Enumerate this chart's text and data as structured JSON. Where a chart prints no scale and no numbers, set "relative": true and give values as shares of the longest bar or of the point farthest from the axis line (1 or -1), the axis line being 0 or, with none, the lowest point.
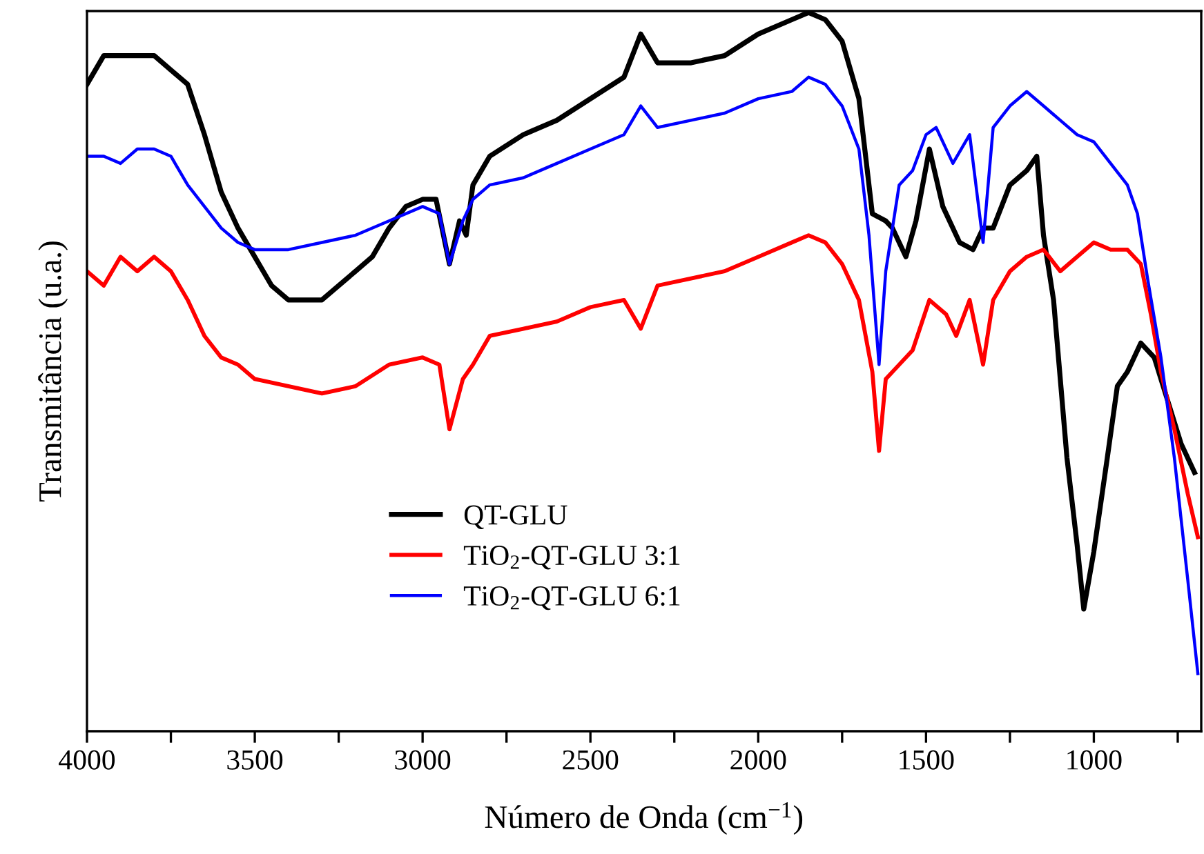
{
  "chart_data": {
    "type": "line",
    "relative": true,
    "xlabel": "Número de Onda (cm$^{−1}$)",
    "ylabel": "Transmitância (u.a.)",
    "xlim": [
      4000,
      680
    ],
    "xticks": [
      4000,
      {
        "value": 3750,
        "label": null
      },
      3500,
      {
        "value": 3250,
        "label": null
      },
      3000,
      {
        "value": 2750,
        "label": null
      },
      2500,
      {
        "value": 2250,
        "label": null
      },
      2000,
      {
        "value": 1750,
        "label": null
      },
      1500,
      {
        "value": 1250,
        "label": null
      },
      1000,
      {
        "value": 750,
        "label": null
      }
    ],
    "tick_labels": "x",
    "grid": false,
    "legend": "bottom left",
    "marker": "none",
    "line_style": "solid",
    "series": [
      {
        "name": "QT-GLU",
        "color": "#000000",
        "x": [
          4000,
          3950,
          3900,
          3850,
          3800,
          3750,
          3700,
          3650,
          3600,
          3550,
          3500,
          3450,
          3400,
          3350,
          3300,
          3250,
          3200,
          3150,
          3100,
          3050,
          3000,
          2960,
          2920,
          2890,
          2870,
          2850,
          2800,
          2700,
          2600,
          2500,
          2400,
          2350,
          2300,
          2200,
          2100,
          2000,
          1900,
          1850,
          1800,
          1750,
          1700,
          1660,
          1620,
          1600,
          1560,
          1530,
          1490,
          1450,
          1400,
          1360,
          1330,
          1300,
          1250,
          1200,
          1170,
          1150,
          1120,
          1080,
          1050,
          1030,
          1000,
          960,
          930,
          900,
          860,
          820,
          780,
          740,
          700
        ],
        "values": [
          0.9,
          0.94,
          0.94,
          0.94,
          0.94,
          0.92,
          0.9,
          0.83,
          0.75,
          0.7,
          0.66,
          0.62,
          0.6,
          0.6,
          0.6,
          0.62,
          0.64,
          0.66,
          0.7,
          0.73,
          0.74,
          0.74,
          0.65,
          0.71,
          0.69,
          0.76,
          0.8,
          0.83,
          0.85,
          0.88,
          0.91,
          0.97,
          0.93,
          0.93,
          0.94,
          0.97,
          0.99,
          1.0,
          0.99,
          0.96,
          0.88,
          0.72,
          0.71,
          0.7,
          0.66,
          0.71,
          0.81,
          0.73,
          0.68,
          0.67,
          0.7,
          0.7,
          0.76,
          0.78,
          0.8,
          0.69,
          0.6,
          0.38,
          0.26,
          0.17,
          0.25,
          0.38,
          0.48,
          0.5,
          0.54,
          0.52,
          0.46,
          0.4,
          0.36
        ]
      },
      {
        "name": "TiO$_{2}$-QT-GLU 3:1",
        "color": "#ff0000",
        "x": [
          4000,
          3950,
          3900,
          3850,
          3800,
          3750,
          3700,
          3650,
          3600,
          3550,
          3500,
          3400,
          3300,
          3200,
          3100,
          3000,
          2950,
          2920,
          2880,
          2850,
          2800,
          2700,
          2600,
          2500,
          2400,
          2350,
          2300,
          2200,
          2100,
          2000,
          1900,
          1850,
          1800,
          1750,
          1700,
          1660,
          1640,
          1620,
          1580,
          1540,
          1490,
          1440,
          1410,
          1370,
          1330,
          1300,
          1250,
          1200,
          1150,
          1100,
          1050,
          1000,
          950,
          900,
          860,
          830,
          800,
          760,
          720,
          690
        ],
        "values": [
          0.64,
          0.62,
          0.66,
          0.64,
          0.66,
          0.64,
          0.6,
          0.55,
          0.52,
          0.51,
          0.49,
          0.48,
          0.47,
          0.48,
          0.51,
          0.52,
          0.51,
          0.42,
          0.49,
          0.51,
          0.55,
          0.56,
          0.57,
          0.59,
          0.6,
          0.56,
          0.62,
          0.63,
          0.64,
          0.66,
          0.68,
          0.69,
          0.68,
          0.65,
          0.6,
          0.5,
          0.39,
          0.49,
          0.51,
          0.53,
          0.6,
          0.58,
          0.55,
          0.6,
          0.51,
          0.6,
          0.64,
          0.66,
          0.67,
          0.64,
          0.66,
          0.68,
          0.67,
          0.67,
          0.65,
          0.58,
          0.5,
          0.42,
          0.33,
          0.27
        ]
      },
      {
        "name": "TiO$_{2}$-QT-GLU 6:1",
        "color": "#0000ff",
        "x": [
          4000,
          3950,
          3900,
          3850,
          3800,
          3750,
          3700,
          3650,
          3600,
          3550,
          3500,
          3400,
          3300,
          3200,
          3100,
          3000,
          2950,
          2920,
          2880,
          2850,
          2800,
          2700,
          2600,
          2500,
          2400,
          2350,
          2300,
          2200,
          2100,
          2000,
          1900,
          1850,
          1800,
          1750,
          1700,
          1670,
          1640,
          1620,
          1580,
          1540,
          1500,
          1470,
          1420,
          1370,
          1330,
          1300,
          1250,
          1200,
          1150,
          1100,
          1050,
          1000,
          950,
          900,
          870,
          840,
          800,
          760,
          720,
          690
        ],
        "values": [
          0.8,
          0.8,
          0.79,
          0.81,
          0.81,
          0.8,
          0.76,
          0.73,
          0.7,
          0.68,
          0.67,
          0.67,
          0.68,
          0.69,
          0.71,
          0.73,
          0.72,
          0.65,
          0.71,
          0.74,
          0.76,
          0.77,
          0.79,
          0.81,
          0.83,
          0.87,
          0.84,
          0.85,
          0.86,
          0.88,
          0.89,
          0.91,
          0.9,
          0.87,
          0.81,
          0.69,
          0.51,
          0.64,
          0.76,
          0.78,
          0.83,
          0.84,
          0.79,
          0.83,
          0.68,
          0.84,
          0.87,
          0.89,
          0.87,
          0.85,
          0.83,
          0.82,
          0.79,
          0.76,
          0.72,
          0.63,
          0.52,
          0.38,
          0.21,
          0.08
        ]
      }
    ]
  }
}
